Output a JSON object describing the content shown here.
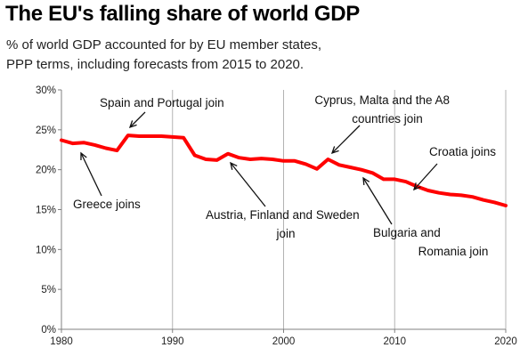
{
  "title": "The EU's falling share of world GDP",
  "subtitle": "% of world GDP accounted for by EU member states, PPP terms, including forecasts from 2015 to 2020.",
  "colors": {
    "line": "#ff0000",
    "grid": "#b3b3b3",
    "axis": "#808080"
  },
  "chart_data": {
    "type": "line",
    "title": "The EU's falling share of world GDP",
    "subtitle": "% of world GDP accounted for by EU member states, PPP terms, including forecasts from 2015 to 2020.",
    "xlim": [
      1980,
      2020
    ],
    "ylim": [
      0,
      30
    ],
    "x_ticks": [
      1980,
      1990,
      2000,
      2010,
      2020
    ],
    "y_ticks": [
      0,
      5,
      10,
      15,
      20,
      25,
      30
    ],
    "y_tick_labels": [
      "0%",
      "5%",
      "10%",
      "15%",
      "20%",
      "25%",
      "30%"
    ],
    "grid": "vertical lines at x ticks",
    "legend": "none",
    "series": [
      {
        "x": [
          1980,
          1981,
          1982,
          1983,
          1984,
          1985,
          1986,
          1987,
          1988,
          1989,
          1990,
          1991,
          1992,
          1993,
          1994,
          1995,
          1996,
          1997,
          1998,
          1999,
          2000,
          2001,
          2002,
          2003,
          2004,
          2005,
          2006,
          2007,
          2008,
          2009,
          2010,
          2011,
          2012,
          2013,
          2014,
          2015,
          2016,
          2017,
          2018,
          2019,
          2020
        ],
        "values": [
          23.7,
          23.3,
          23.4,
          23.1,
          22.7,
          22.4,
          24.3,
          24.2,
          24.2,
          24.2,
          24.1,
          24.0,
          21.8,
          21.3,
          21.2,
          22.0,
          21.5,
          21.3,
          21.4,
          21.3,
          21.1,
          21.1,
          20.7,
          20.1,
          21.3,
          20.6,
          20.3,
          20.0,
          19.6,
          18.8,
          18.8,
          18.5,
          17.9,
          17.4,
          17.1,
          16.9,
          16.8,
          16.6,
          16.2,
          15.9,
          15.5
        ]
      }
    ],
    "annotations": [
      {
        "lines": [
          "Spain and Portugal join"
        ],
        "x": 1986
      },
      {
        "lines": [
          "Greece joins"
        ],
        "x": 1981
      },
      {
        "lines": [
          "Austria, Finland and Sweden",
          "join"
        ],
        "x": 1995
      },
      {
        "lines": [
          "Cyprus, Malta and the A8",
          "countries join"
        ],
        "x": 2004
      },
      {
        "lines": [
          "Bulgaria and",
          "Romania join"
        ],
        "x": 2007
      },
      {
        "lines": [
          "Croatia joins"
        ],
        "x": 2013
      }
    ]
  }
}
